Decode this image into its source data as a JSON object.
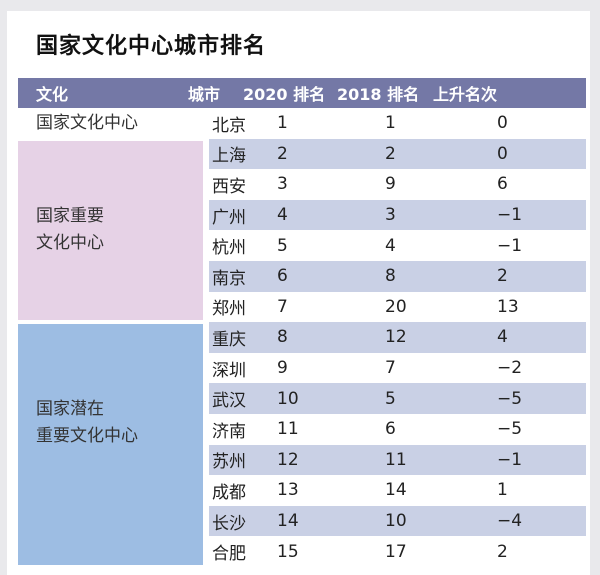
{
  "page": {
    "title": "国家文化中心城市排名"
  },
  "colors": {
    "header_bg": "#7478a6",
    "header_text": "#ffffff",
    "row_stripe": "#c9d0e5",
    "group_national_center": "transparent",
    "group_important": "#e6d2e6",
    "group_potential": "#9dbde3",
    "body_text": "#222222"
  },
  "table": {
    "headers": [
      "文化",
      "城市",
      "2020 排名",
      "2018 排名",
      "上升名次"
    ],
    "groups": [
      {
        "label_lines": [
          "国家文化中心"
        ],
        "color": "transparent",
        "rows": [
          {
            "city": "北京",
            "rank2020": "1",
            "rank2018": "1",
            "change": "0"
          }
        ]
      },
      {
        "label_lines": [
          "国家重要",
          "文化中心"
        ],
        "color": "#e6d2e6",
        "rows": [
          {
            "city": "上海",
            "rank2020": "2",
            "rank2018": "2",
            "change": "0"
          },
          {
            "city": "西安",
            "rank2020": "3",
            "rank2018": "9",
            "change": "6"
          },
          {
            "city": "广州",
            "rank2020": "4",
            "rank2018": "3",
            "change": "−1"
          },
          {
            "city": "杭州",
            "rank2020": "5",
            "rank2018": "4",
            "change": "−1"
          },
          {
            "city": "南京",
            "rank2020": "6",
            "rank2018": "8",
            "change": "2"
          },
          {
            "city": "郑州",
            "rank2020": "7",
            "rank2018": "20",
            "change": "13"
          }
        ]
      },
      {
        "label_lines": [
          "国家潜在",
          "重要文化中心"
        ],
        "color": "#9dbde3",
        "rows": [
          {
            "city": "重庆",
            "rank2020": "8",
            "rank2018": "12",
            "change": "4"
          },
          {
            "city": "深圳",
            "rank2020": "9",
            "rank2018": "7",
            "change": "−2"
          },
          {
            "city": "武汉",
            "rank2020": "10",
            "rank2018": "5",
            "change": "−5"
          },
          {
            "city": "济南",
            "rank2020": "11",
            "rank2018": "6",
            "change": "−5"
          },
          {
            "city": "苏州",
            "rank2020": "12",
            "rank2018": "11",
            "change": "−1"
          },
          {
            "city": "成都",
            "rank2020": "13",
            "rank2018": "14",
            "change": "1"
          },
          {
            "city": "长沙",
            "rank2020": "14",
            "rank2018": "10",
            "change": "−4"
          },
          {
            "city": "合肥",
            "rank2020": "15",
            "rank2018": "17",
            "change": "2"
          }
        ]
      }
    ]
  }
}
